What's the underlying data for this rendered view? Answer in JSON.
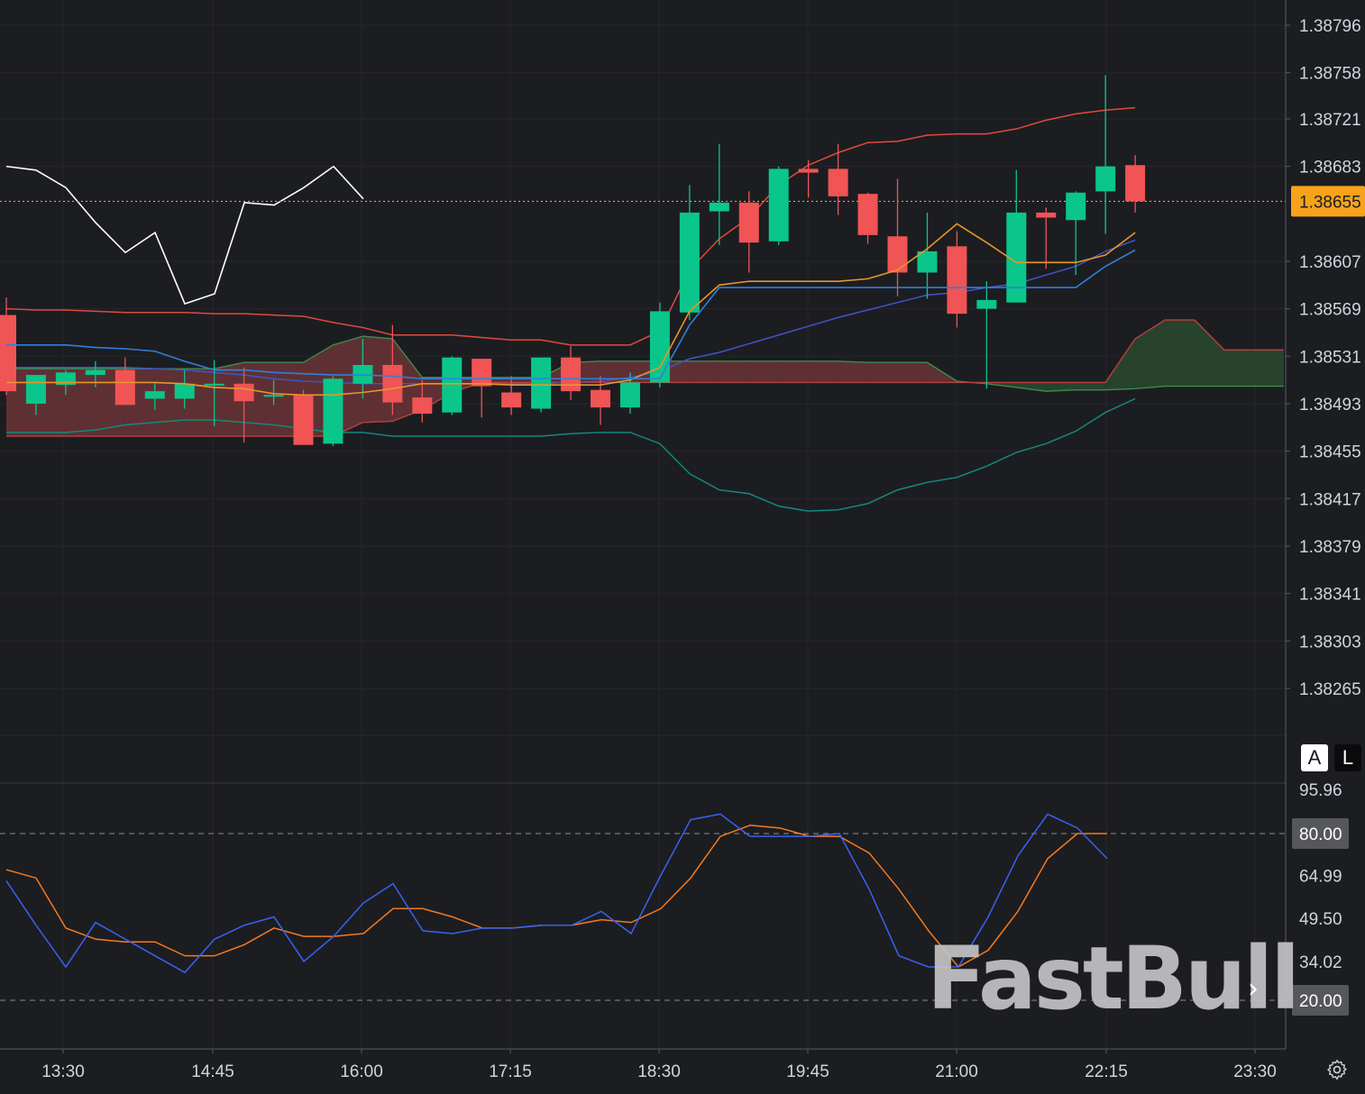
{
  "watermark": "FastBull",
  "scale_buttons": {
    "auto": "A",
    "log": "L"
  },
  "icons": {
    "settings": "gear-icon",
    "scroll": "chevron-right-icon"
  },
  "colors": {
    "background": "#1c1d21",
    "up": "#0bc68a",
    "down": "#f05454",
    "last_price": "#f7a21b",
    "bb_upper": "#e04a3c",
    "bb_lower": "#13897a",
    "ma_orange": "#e8962a",
    "ma_blue": "#2f7fdc",
    "kumo_bear": "#6b3436",
    "kumo_bull": "#2a4a2e",
    "stoch_k": "#3763f0",
    "stoch_d": "#f47a1f",
    "label_bg": "#55575c"
  },
  "chart_data": [
    {
      "type": "candlestick",
      "pair_axis": "price",
      "x_labels": [
        "13:30",
        "14:45",
        "16:00",
        "17:15",
        "18:30",
        "19:45",
        "21:00",
        "22:15",
        "23:30"
      ],
      "y_ticks": [
        "1.38796",
        "1.38758",
        "1.38721",
        "1.38683",
        "1.38607",
        "1.38569",
        "1.38531",
        "1.38493",
        "1.38455",
        "1.38417",
        "1.38379",
        "1.38341",
        "1.38303",
        "1.38265"
      ],
      "y_range": [
        1.38225,
        1.3882
      ],
      "last_price": "1.38655",
      "candles": [
        {
          "o": 1.38564,
          "h": 1.38578,
          "l": 1.385,
          "c": 1.38503
        },
        {
          "o": 1.38493,
          "h": 1.38512,
          "l": 1.38484,
          "c": 1.38516
        },
        {
          "o": 1.38508,
          "h": 1.3852,
          "l": 1.385,
          "c": 1.38518
        },
        {
          "o": 1.38516,
          "h": 1.38527,
          "l": 1.38506,
          "c": 1.3852
        },
        {
          "o": 1.3852,
          "h": 1.3853,
          "l": 1.38492,
          "c": 1.38492
        },
        {
          "o": 1.38497,
          "h": 1.3851,
          "l": 1.38488,
          "c": 1.38503
        },
        {
          "o": 1.38497,
          "h": 1.3852,
          "l": 1.38489,
          "c": 1.38509
        },
        {
          "o": 1.38509,
          "h": 1.38528,
          "l": 1.38475,
          "c": 1.38509
        },
        {
          "o": 1.38509,
          "h": 1.38522,
          "l": 1.38462,
          "c": 1.38495
        },
        {
          "o": 1.385,
          "h": 1.38512,
          "l": 1.38492,
          "c": 1.385
        },
        {
          "o": 1.385,
          "h": 1.38504,
          "l": 1.3846,
          "c": 1.3846
        },
        {
          "o": 1.38461,
          "h": 1.38515,
          "l": 1.38459,
          "c": 1.38513
        },
        {
          "o": 1.38509,
          "h": 1.38545,
          "l": 1.38497,
          "c": 1.38524
        },
        {
          "o": 1.38524,
          "h": 1.38556,
          "l": 1.38484,
          "c": 1.38494
        },
        {
          "o": 1.38498,
          "h": 1.38512,
          "l": 1.38478,
          "c": 1.38485
        },
        {
          "o": 1.38486,
          "h": 1.38531,
          "l": 1.38484,
          "c": 1.3853
        },
        {
          "o": 1.38529,
          "h": 1.38529,
          "l": 1.38482,
          "c": 1.38507
        },
        {
          "o": 1.38502,
          "h": 1.38515,
          "l": 1.38484,
          "c": 1.3849
        },
        {
          "o": 1.38489,
          "h": 1.38529,
          "l": 1.38486,
          "c": 1.3853
        },
        {
          "o": 1.3853,
          "h": 1.38539,
          "l": 1.38496,
          "c": 1.38503
        },
        {
          "o": 1.38504,
          "h": 1.38515,
          "l": 1.38476,
          "c": 1.3849
        },
        {
          "o": 1.3849,
          "h": 1.38518,
          "l": 1.38485,
          "c": 1.3851
        },
        {
          "o": 1.3851,
          "h": 1.38574,
          "l": 1.38506,
          "c": 1.38567
        },
        {
          "o": 1.38566,
          "h": 1.38668,
          "l": 1.3856,
          "c": 1.38646
        },
        {
          "o": 1.38647,
          "h": 1.38701,
          "l": 1.3862,
          "c": 1.38654
        },
        {
          "o": 1.38654,
          "h": 1.38663,
          "l": 1.38598,
          "c": 1.38622
        },
        {
          "o": 1.38623,
          "h": 1.38683,
          "l": 1.3862,
          "c": 1.38681
        },
        {
          "o": 1.38681,
          "h": 1.38688,
          "l": 1.38658,
          "c": 1.38678
        },
        {
          "o": 1.38681,
          "h": 1.38701,
          "l": 1.38644,
          "c": 1.38659
        },
        {
          "o": 1.38661,
          "h": 1.38662,
          "l": 1.38621,
          "c": 1.38628
        },
        {
          "o": 1.38627,
          "h": 1.38673,
          "l": 1.38579,
          "c": 1.38598
        },
        {
          "o": 1.38598,
          "h": 1.38646,
          "l": 1.38577,
          "c": 1.38615
        },
        {
          "o": 1.38619,
          "h": 1.38631,
          "l": 1.38554,
          "c": 1.38565
        },
        {
          "o": 1.38569,
          "h": 1.38591,
          "l": 1.38505,
          "c": 1.38576
        },
        {
          "o": 1.38574,
          "h": 1.3868,
          "l": 1.38574,
          "c": 1.38646
        },
        {
          "o": 1.38646,
          "h": 1.3865,
          "l": 1.38601,
          "c": 1.38642
        },
        {
          "o": 1.3864,
          "h": 1.38663,
          "l": 1.38596,
          "c": 1.38662
        },
        {
          "o": 1.38663,
          "h": 1.38756,
          "l": 1.38629,
          "c": 1.38683
        },
        {
          "o": 1.38684,
          "h": 1.38692,
          "l": 1.38646,
          "c": 1.38655
        }
      ],
      "bollinger_upper": [
        1.38569,
        1.38568,
        1.38568,
        1.38567,
        1.38566,
        1.38566,
        1.38566,
        1.38565,
        1.38565,
        1.38564,
        1.38563,
        1.38558,
        1.38554,
        1.38548,
        1.38548,
        1.38548,
        1.38546,
        1.38544,
        1.38544,
        1.3854,
        1.3854,
        1.3854,
        1.38551,
        1.386,
        1.38625,
        1.38642,
        1.38668,
        1.38684,
        1.38694,
        1.38702,
        1.38703,
        1.38708,
        1.38709,
        1.38709,
        1.38713,
        1.3872,
        1.38725,
        1.38728,
        1.3873
      ],
      "bollinger_lower": [
        1.3847,
        1.3847,
        1.3847,
        1.38472,
        1.38476,
        1.38478,
        1.3848,
        1.3848,
        1.38478,
        1.38476,
        1.38473,
        1.3847,
        1.3847,
        1.38467,
        1.38467,
        1.38467,
        1.38467,
        1.38467,
        1.38467,
        1.38469,
        1.3847,
        1.3847,
        1.38461,
        1.38437,
        1.38424,
        1.38421,
        1.38411,
        1.38407,
        1.38408,
        1.38413,
        1.38424,
        1.3843,
        1.38434,
        1.38443,
        1.38454,
        1.38461,
        1.38471,
        1.38486,
        1.38497
      ],
      "ma_orange": [
        1.3851,
        1.3851,
        1.3851,
        1.3851,
        1.3851,
        1.3851,
        1.38509,
        1.38506,
        1.38505,
        1.38501,
        1.385,
        1.385,
        1.38502,
        1.38505,
        1.38509,
        1.38509,
        1.38509,
        1.38508,
        1.38508,
        1.38508,
        1.38508,
        1.38512,
        1.38522,
        1.38567,
        1.38588,
        1.38591,
        1.38591,
        1.38591,
        1.38591,
        1.38593,
        1.386,
        1.38617,
        1.38637,
        1.38622,
        1.38606,
        1.38606,
        1.38606,
        1.38612,
        1.3863
      ],
      "ma_blue": [
        1.3854,
        1.3854,
        1.3854,
        1.38538,
        1.38537,
        1.38535,
        1.38527,
        1.3852,
        1.3852,
        1.38518,
        1.38517,
        1.38516,
        1.38516,
        1.38515,
        1.38513,
        1.38513,
        1.38513,
        1.38513,
        1.38513,
        1.38513,
        1.38513,
        1.38513,
        1.38513,
        1.38556,
        1.38586,
        1.38586,
        1.38586,
        1.38586,
        1.38586,
        1.38586,
        1.38586,
        1.38586,
        1.38586,
        1.38586,
        1.38586,
        1.38586,
        1.38586,
        1.38603,
        1.38616
      ],
      "ma_slow": [
        1.38522,
        1.38522,
        1.38522,
        1.38522,
        1.38522,
        1.38521,
        1.3852,
        1.38518,
        1.38516,
        1.38513,
        1.38511,
        1.3851,
        1.38509,
        1.38509,
        1.38509,
        1.38509,
        1.38509,
        1.38509,
        1.38509,
        1.3851,
        1.38511,
        1.38514,
        1.38519,
        1.38529,
        1.38534,
        1.38541,
        1.38548,
        1.38555,
        1.38562,
        1.38568,
        1.38574,
        1.3858,
        1.38582,
        1.38586,
        1.38589,
        1.38596,
        1.38603,
        1.38615,
        1.38624
      ],
      "kumo_span_a": [
        1.38521,
        1.38521,
        1.38521,
        1.38521,
        1.38521,
        1.38521,
        1.38521,
        1.38521,
        1.38526,
        1.38526,
        1.38526,
        1.3854,
        1.38547,
        1.38545,
        1.38514,
        1.38514,
        1.38514,
        1.38514,
        1.38514,
        1.38526,
        1.38527,
        1.38527,
        1.38527,
        1.38527,
        1.38527,
        1.38527,
        1.38527,
        1.38527,
        1.38527,
        1.38526,
        1.38526,
        1.38526,
        1.38511,
        1.38509,
        1.38506,
        1.38503,
        1.38504,
        1.38504,
        1.38505,
        1.38507,
        1.38507,
        1.38507,
        1.38507,
        1.38507
      ],
      "kumo_span_b": [
        1.38467,
        1.38467,
        1.38467,
        1.38467,
        1.38467,
        1.38467,
        1.38467,
        1.38467,
        1.38467,
        1.38467,
        1.38467,
        1.38467,
        1.38478,
        1.38479,
        1.38488,
        1.38502,
        1.3851,
        1.3851,
        1.3851,
        1.3851,
        1.3851,
        1.3851,
        1.3851,
        1.3851,
        1.3851,
        1.3851,
        1.3851,
        1.3851,
        1.3851,
        1.3851,
        1.3851,
        1.3851,
        1.3851,
        1.3851,
        1.3851,
        1.3851,
        1.3851,
        1.3851,
        1.38545,
        1.3856,
        1.3856,
        1.38536,
        1.38536,
        1.38536
      ],
      "white_line": [
        1.38683,
        1.3868,
        1.38666,
        1.38638,
        1.38614,
        1.3863,
        1.38573,
        1.38581,
        1.38654,
        1.38652,
        1.38666,
        1.38683,
        1.38657
      ]
    },
    {
      "type": "line",
      "pair_axis": "stochastic",
      "y_ticks": [
        "95.96",
        "64.99",
        "49.50",
        "34.02"
      ],
      "y_range": [
        15,
        100
      ],
      "levels": [
        "80.00",
        "20.00"
      ],
      "series": [
        {
          "key": "k",
          "values": [
            63,
            47,
            32,
            48,
            42,
            36,
            30,
            42,
            47,
            50,
            34,
            43,
            55,
            62,
            45,
            44,
            46,
            46,
            47,
            47,
            52,
            44,
            65,
            85,
            87,
            79,
            79,
            79,
            80,
            60,
            36,
            32,
            32,
            50,
            72,
            87,
            82,
            71
          ]
        },
        {
          "key": "d",
          "values": [
            67,
            64,
            46,
            42,
            41,
            41,
            36,
            36,
            40,
            46,
            43,
            43,
            44,
            53,
            53,
            50,
            46,
            46,
            47,
            47,
            49,
            48,
            53,
            64,
            79,
            83,
            82,
            79,
            79,
            73,
            60,
            45,
            32,
            38,
            52,
            71,
            80,
            80
          ]
        }
      ]
    }
  ]
}
